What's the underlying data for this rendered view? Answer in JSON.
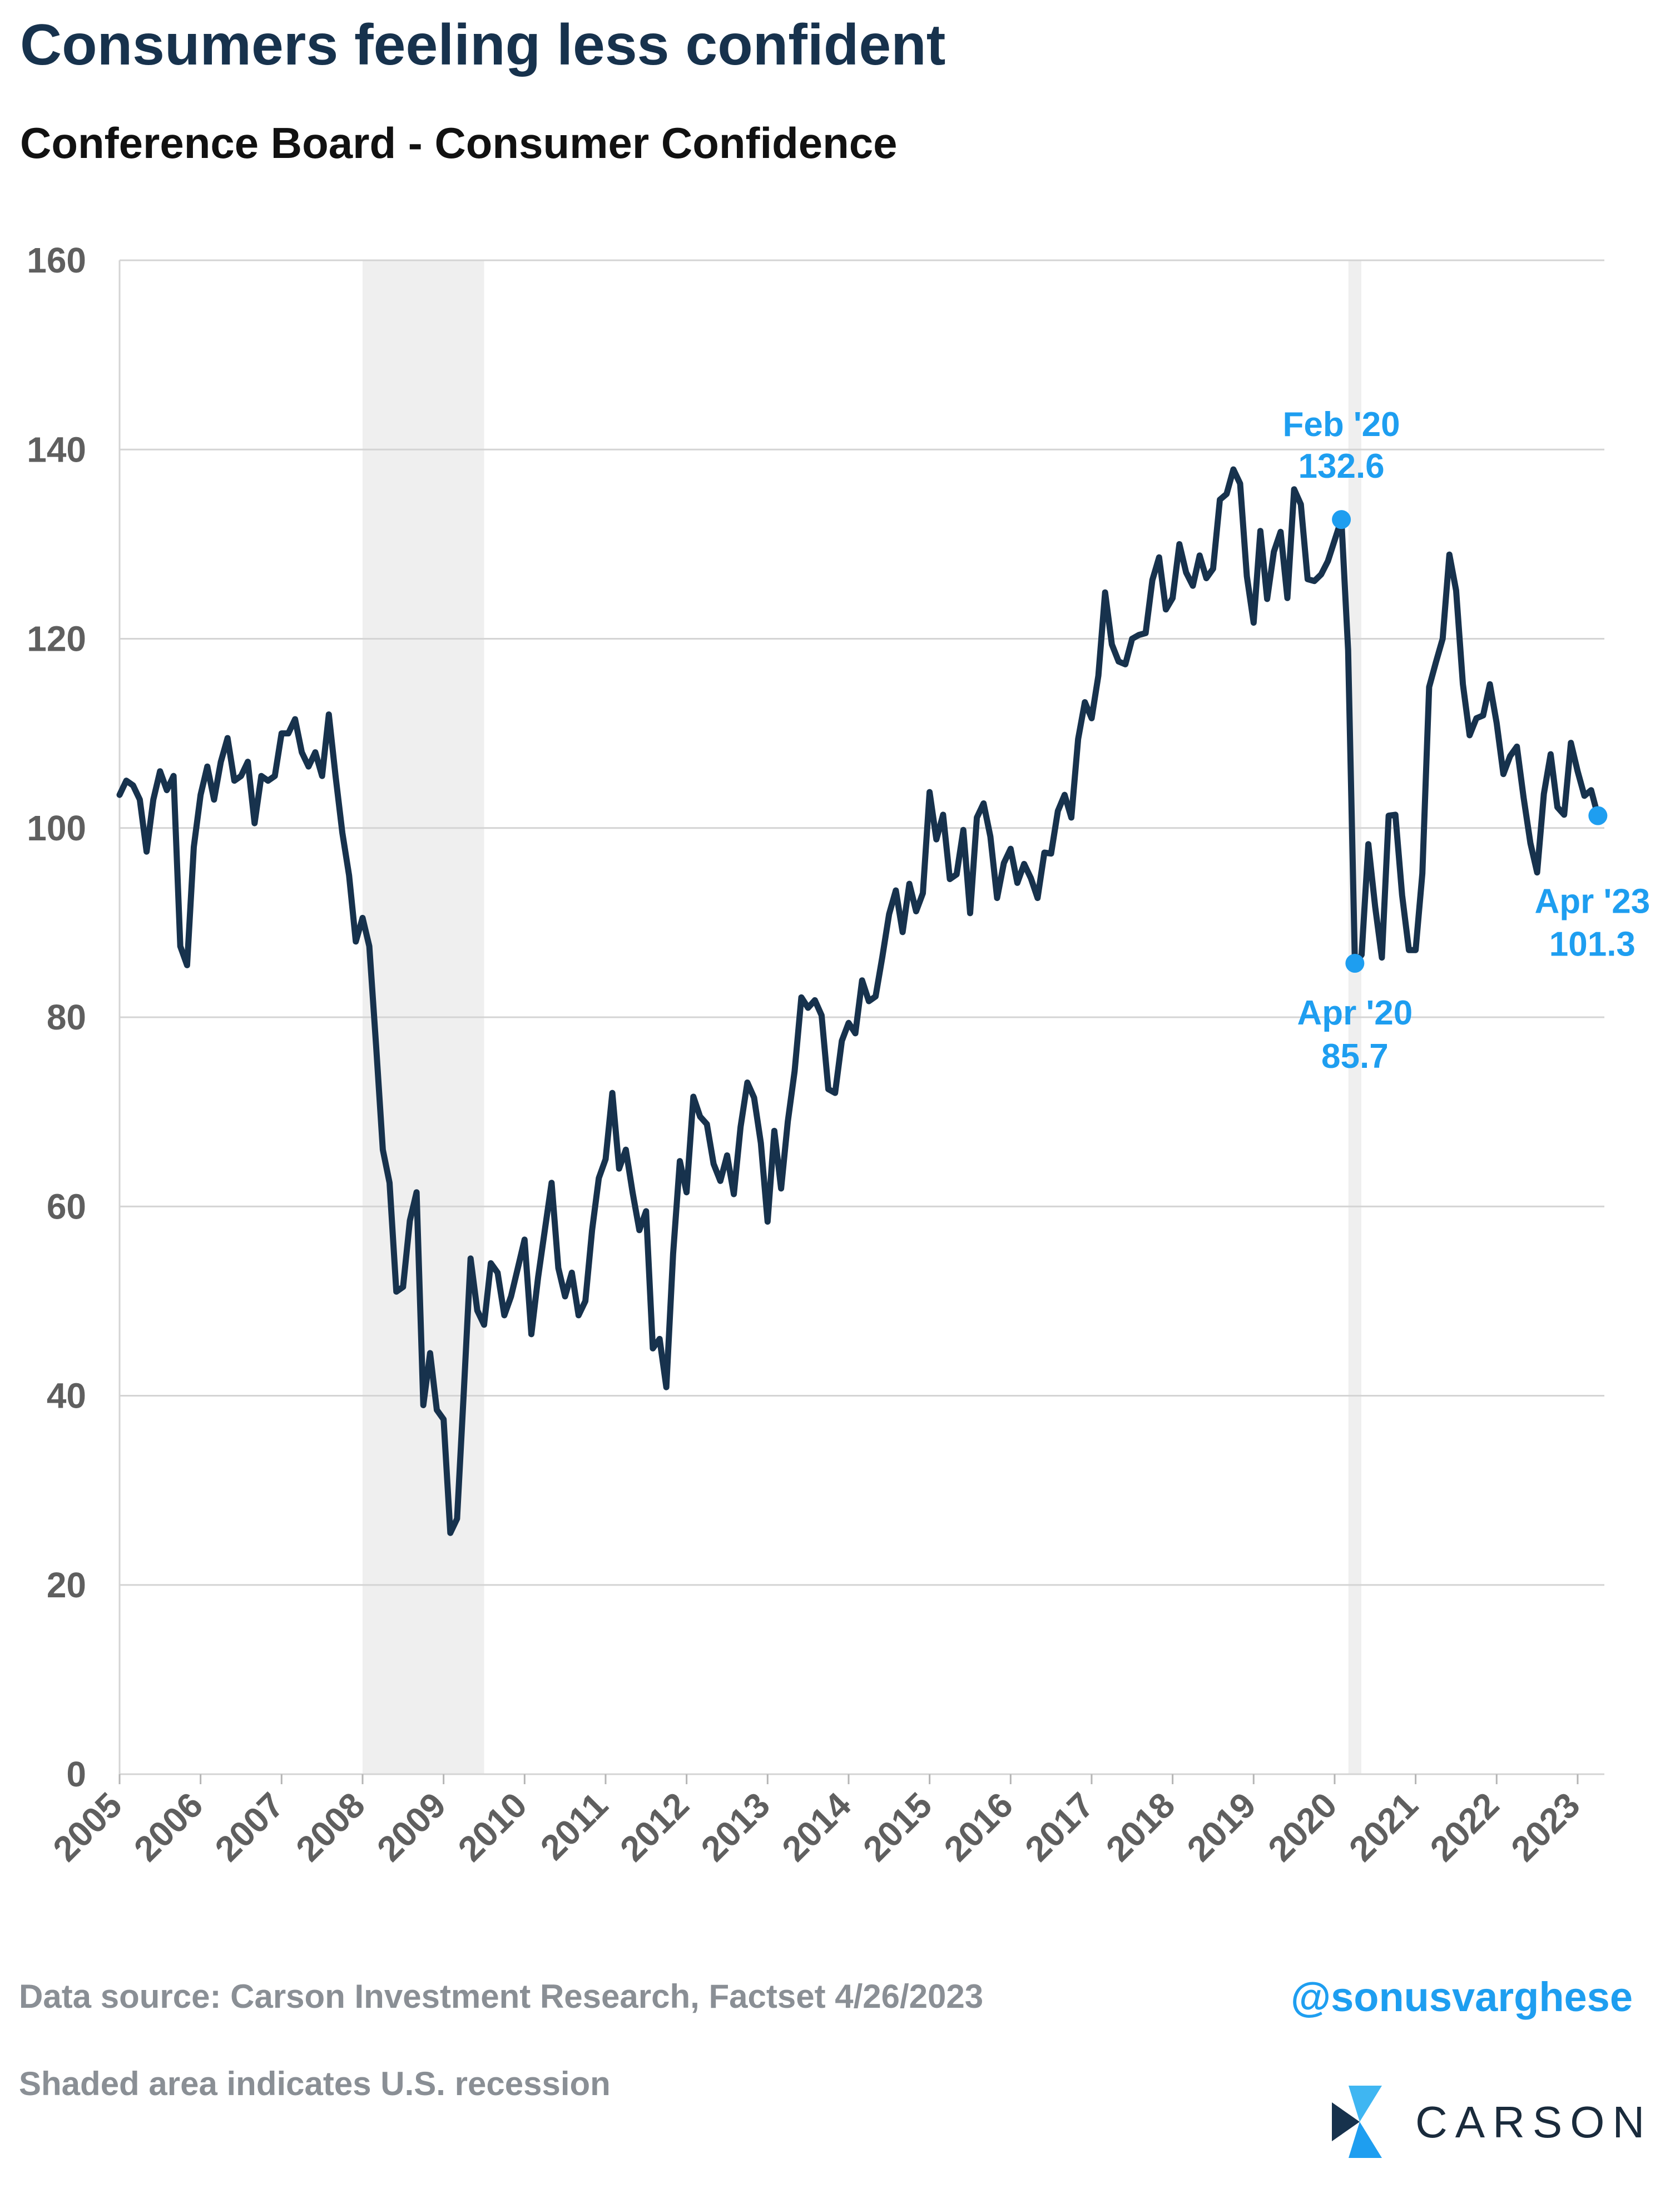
{
  "header": {
    "title": "Consumers feeling less confident",
    "subtitle": "Conference Board - Consumer Confidence"
  },
  "footer": {
    "source": "Data source: Carson Investment Research, Factset   4/26/2023",
    "note": "Shaded area indicates U.S. recession",
    "handle": "@sonusvarghese",
    "logo_text": "CARSON"
  },
  "colors": {
    "line": "#17324d",
    "highlight": "#1e9ef0",
    "recession": "#efefef",
    "grid": "#d4d4d4",
    "tick_label": "#5f5f5f"
  },
  "chart_data": {
    "type": "line",
    "title": "Conference Board - Consumer Confidence",
    "xlabel": "",
    "ylabel": "",
    "ylim": [
      0,
      160
    ],
    "xlim": [
      2005.0,
      2023.33
    ],
    "grid": true,
    "yticks": [
      0,
      20,
      40,
      60,
      80,
      100,
      120,
      140,
      160
    ],
    "xticks": [
      2005,
      2006,
      2007,
      2008,
      2009,
      2010,
      2011,
      2012,
      2013,
      2014,
      2015,
      2016,
      2017,
      2018,
      2019,
      2020,
      2021,
      2022,
      2023
    ],
    "recessions": [
      [
        2008.0,
        2009.5
      ],
      [
        2020.17,
        2020.33
      ]
    ],
    "series": [
      {
        "frequency": "monthly",
        "start": "2005-01",
        "values": [
          103.5,
          105,
          104.5,
          103,
          97.5,
          103,
          106,
          104,
          105.5,
          87.5,
          85.5,
          98,
          103.5,
          106.5,
          103,
          107,
          109.5,
          105,
          105.5,
          107,
          100.5,
          105.5,
          105,
          105.5,
          110,
          110,
          111.5,
          108,
          106.5,
          108,
          105.5,
          112,
          105.5,
          99.5,
          95,
          88,
          90.5,
          87.5,
          77,
          66,
          62.5,
          51,
          51.5,
          58.5,
          61.5,
          39,
          44.5,
          38.5,
          37.5,
          25.5,
          27,
          40.5,
          54.5,
          49,
          47.5,
          54,
          53,
          48.5,
          50.5,
          53.5,
          56.5,
          46.5,
          52.5,
          57.5,
          62.5,
          53.5,
          50.5,
          53,
          48.5,
          50,
          57.5,
          63,
          65,
          72,
          64,
          66,
          61.5,
          57.5,
          59.5,
          45,
          46,
          40.9,
          55,
          64.8,
          61.5,
          71.6,
          69.5,
          68.7,
          64.5,
          62.7,
          65.4,
          61.3,
          68.4,
          73.1,
          71.5,
          66.7,
          58.4,
          68,
          61.9,
          69,
          74.3,
          82.1,
          81,
          81.8,
          80.2,
          72.4,
          72,
          77.5,
          79.4,
          78.3,
          83.9,
          81.7,
          82.2,
          86.4,
          90.9,
          93.4,
          89,
          94.1,
          91.2,
          93.1,
          103.8,
          98.8,
          101.4,
          94.6,
          95.1,
          99.8,
          91,
          101.1,
          102.6,
          99.1,
          92.6,
          96.3,
          97.8,
          94.2,
          96.2,
          94.7,
          92.6,
          97.4,
          97.3,
          101.8,
          103.5,
          101.1,
          109.4,
          113.3,
          111.6,
          116.1,
          124.9,
          119.4,
          117.6,
          117.3,
          120,
          120.4,
          120.6,
          126.2,
          128.6,
          123.1,
          124.3,
          130,
          127,
          125.6,
          128.8,
          126.4,
          127.4,
          134.7,
          135.3,
          137.9,
          136.4,
          126.6,
          121.7,
          131.4,
          124.2,
          129.2,
          131.3,
          124.3,
          135.8,
          134.2,
          126.3,
          126.1,
          126.8,
          128.2,
          130.4,
          132.6,
          118.8,
          85.7,
          86.6,
          98.3,
          91.7,
          86.3,
          101.3,
          101.4,
          92.9,
          87.1,
          87.1,
          95.2,
          114.9,
          117.5,
          120,
          128.9,
          125.1,
          115.2,
          109.8,
          111.6,
          111.9,
          115.2,
          111.1,
          105.7,
          107.6,
          108.6,
          103.2,
          98.4,
          95.3,
          103.6,
          107.8,
          102.2,
          101.4,
          109,
          106,
          103.4,
          104,
          101.3
        ]
      }
    ],
    "annotations": [
      {
        "date": "2020-02",
        "value": 132.6,
        "label": "Feb '20",
        "value_label": "132.6"
      },
      {
        "date": "2020-04",
        "value": 85.7,
        "label": "Apr '20",
        "value_label": "85.7"
      },
      {
        "date": "2023-04",
        "value": 101.3,
        "label": "Apr '23",
        "value_label": "101.3"
      }
    ]
  }
}
